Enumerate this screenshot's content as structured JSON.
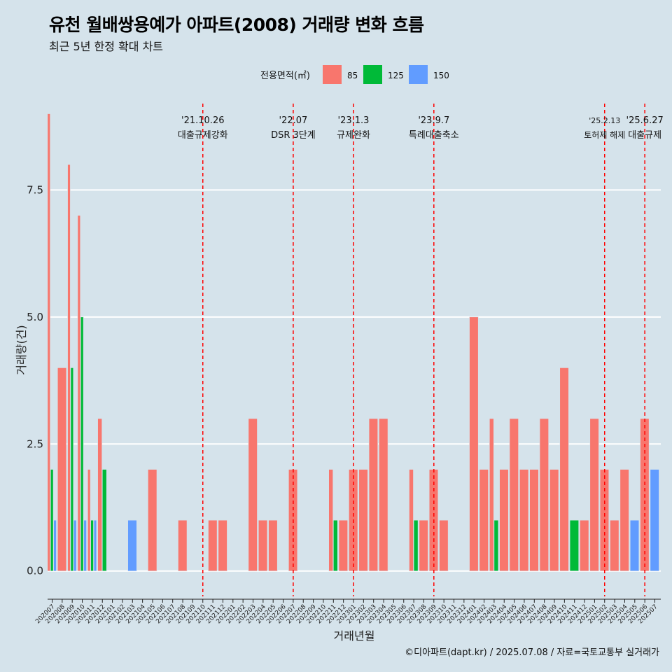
{
  "header": {
    "title": "유천 월배쌍용예가 아파트(2008) 거래량 변화 흐름",
    "subtitle": "최근 5년 한정 확대 차트"
  },
  "footer": {
    "caption": "©디아파트(dapt.kr) / 2025.07.08 / 자료=국토교통부 실거래가"
  },
  "chart_data": {
    "type": "bar",
    "xlabel": "거래년월",
    "ylabel": "거래량(건)",
    "ylim": [
      -0.5,
      9.2
    ],
    "yticks": [
      0.0,
      2.5,
      5.0,
      7.5
    ],
    "grid": true,
    "legend": {
      "title": "전용면적(㎡)",
      "position": "top"
    },
    "series_colors": {
      "85": "#f8766d",
      "125": "#00ba38",
      "150": "#619cff"
    },
    "categories": [
      "202007",
      "202008",
      "202009",
      "202010",
      "202011",
      "202012",
      "202101",
      "202102",
      "202103",
      "202104",
      "202105",
      "202106",
      "202107",
      "202108",
      "202109",
      "202110",
      "202111",
      "202112",
      "202201",
      "202202",
      "202203",
      "202204",
      "202205",
      "202206",
      "202207",
      "202208",
      "202209",
      "202210",
      "202211",
      "202212",
      "202301",
      "202302",
      "202303",
      "202304",
      "202305",
      "202306",
      "202307",
      "202308",
      "202309",
      "202310",
      "202311",
      "202312",
      "202401",
      "202402",
      "202403",
      "202404",
      "202405",
      "202406",
      "202407",
      "202408",
      "202409",
      "202410",
      "202411",
      "202412",
      "202501",
      "202502",
      "202503",
      "202504",
      "202505",
      "202506",
      "202507"
    ],
    "series": [
      {
        "name": "85",
        "values": [
          9,
          4,
          8,
          7,
          2,
          3,
          0,
          0,
          0,
          0,
          2,
          0,
          0,
          1,
          0,
          0,
          1,
          1,
          0,
          0,
          3,
          1,
          1,
          0,
          2,
          0,
          0,
          0,
          2,
          1,
          2,
          2,
          3,
          3,
          0,
          0,
          2,
          1,
          2,
          1,
          0,
          0,
          5,
          2,
          3,
          2,
          3,
          2,
          2,
          3,
          2,
          4,
          0,
          1,
          3,
          2,
          1,
          2,
          0,
          3,
          0
        ]
      },
      {
        "name": "125",
        "values": [
          2,
          0,
          4,
          5,
          1,
          2,
          0,
          0,
          0,
          0,
          0,
          0,
          0,
          0,
          0,
          0,
          0,
          0,
          0,
          0,
          0,
          0,
          0,
          0,
          0,
          0,
          0,
          0,
          1,
          0,
          0,
          0,
          0,
          0,
          0,
          0,
          1,
          0,
          0,
          0,
          0,
          0,
          0,
          0,
          1,
          0,
          0,
          0,
          0,
          0,
          0,
          0,
          1,
          0,
          0,
          0,
          0,
          0,
          0,
          0,
          0
        ]
      },
      {
        "name": "150",
        "values": [
          1,
          0,
          1,
          1,
          1,
          0,
          0,
          0,
          1,
          0,
          0,
          0,
          0,
          0,
          0,
          0,
          0,
          0,
          0,
          0,
          0,
          0,
          0,
          0,
          0,
          0,
          0,
          0,
          0,
          0,
          0,
          0,
          0,
          0,
          0,
          0,
          0,
          0,
          0,
          0,
          0,
          0,
          0,
          0,
          0,
          0,
          0,
          0,
          0,
          0,
          0,
          0,
          0,
          0,
          0,
          0,
          0,
          0,
          1,
          0,
          2
        ]
      }
    ],
    "events": [
      {
        "date": "'21.10.26",
        "label": "대출규제강화",
        "month": "202110"
      },
      {
        "date": "'22.07",
        "label": "DSR 3단계",
        "month": "202207"
      },
      {
        "date": "'23.1.3",
        "label": "규제완화",
        "month": "202301"
      },
      {
        "date": "'23.9.7",
        "label": "특례대출축소",
        "month": "202309"
      },
      {
        "date": "'25.2.13",
        "label": "토허제 해제",
        "month": "202502"
      },
      {
        "date": "'25.6.27",
        "label": "대출규제",
        "month": "202506"
      }
    ]
  }
}
